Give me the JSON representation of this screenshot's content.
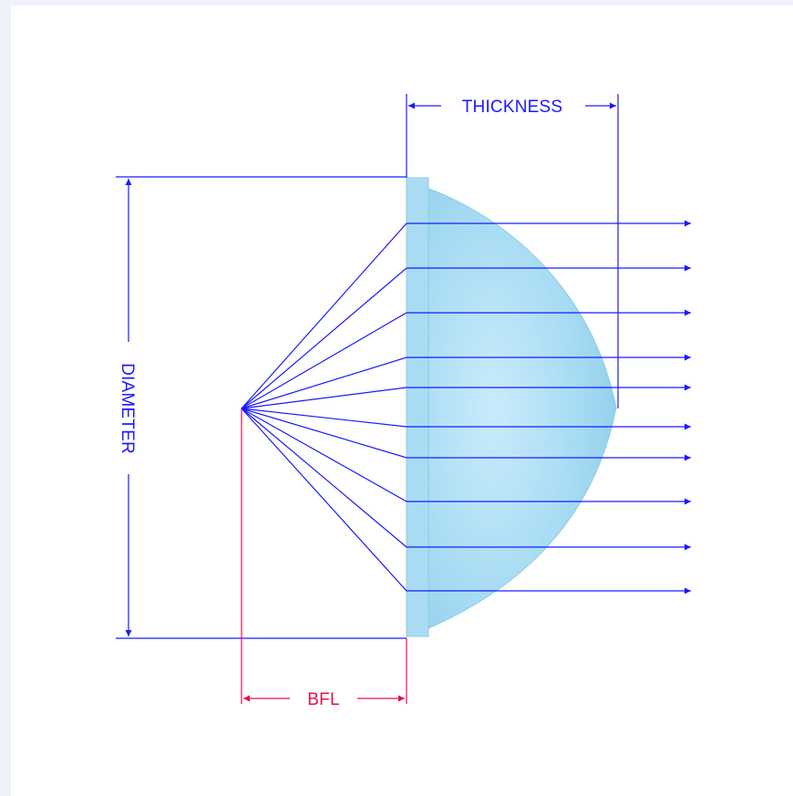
{
  "labels": {
    "thickness": "THICKNESS",
    "diameter": "DIAMETER",
    "bfl": "BFL"
  },
  "colors": {
    "dimension_line": "#1a1aff",
    "bfl_line": "#e8104a",
    "ray": "#1a1aff",
    "lens_fill": "#9fd6ef",
    "background": "#eef1f8"
  }
}
